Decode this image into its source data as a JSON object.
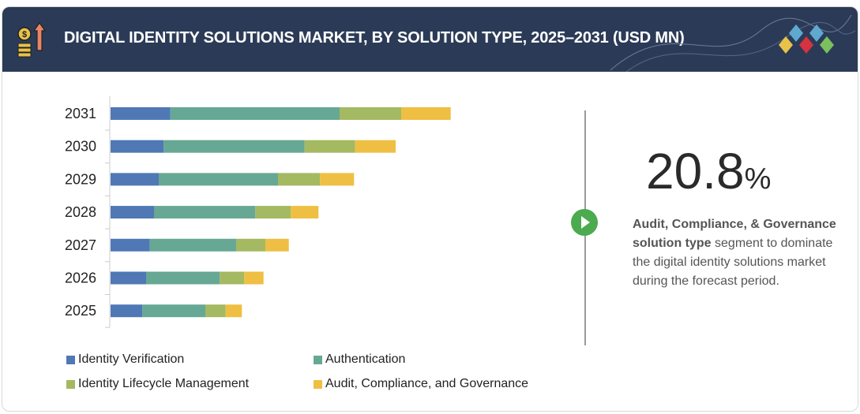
{
  "header": {
    "title": "DIGITAL IDENTITY SOLUTIONS MARKET, BY SOLUTION TYPE, 2025–2031 (USD MN)",
    "icon": "money-growth-icon",
    "logo": "diamond-logo"
  },
  "callout": {
    "value": "20.8",
    "unit": "%",
    "bold_text": "Audit, Compliance, & Governance solution type",
    "text": "segment to dominate the digital identity solutions market during the forecast period.",
    "icon": "play-icon"
  },
  "chart_data": {
    "type": "bar",
    "orientation": "horizontal",
    "stacked": true,
    "title": "",
    "xlabel": "",
    "ylabel": "",
    "categories": [
      "2031",
      "2030",
      "2029",
      "2028",
      "2027",
      "2026",
      "2025"
    ],
    "xlim": [
      0,
      440
    ],
    "grid": false,
    "legend_position": "bottom",
    "series": [
      {
        "name": "Identity Verification",
        "color": "#4f78b5",
        "values": [
          75.7,
          67.3,
          61,
          55,
          49.7,
          45,
          40.3
        ]
      },
      {
        "name": "Authentication",
        "color": "#66a894",
        "values": [
          214.3,
          178.4,
          151,
          128.3,
          109.3,
          93.3,
          79.7
        ]
      },
      {
        "name": "Identity Lifecycle Management",
        "color": "#a4b962",
        "values": [
          78,
          64,
          53.3,
          45,
          37,
          31,
          25.7
        ]
      },
      {
        "name": "Audit, Compliance, and Governance",
        "color": "#efbf43",
        "values": [
          62.7,
          51.3,
          43,
          35,
          29.7,
          24.4,
          20.6
        ]
      }
    ]
  }
}
